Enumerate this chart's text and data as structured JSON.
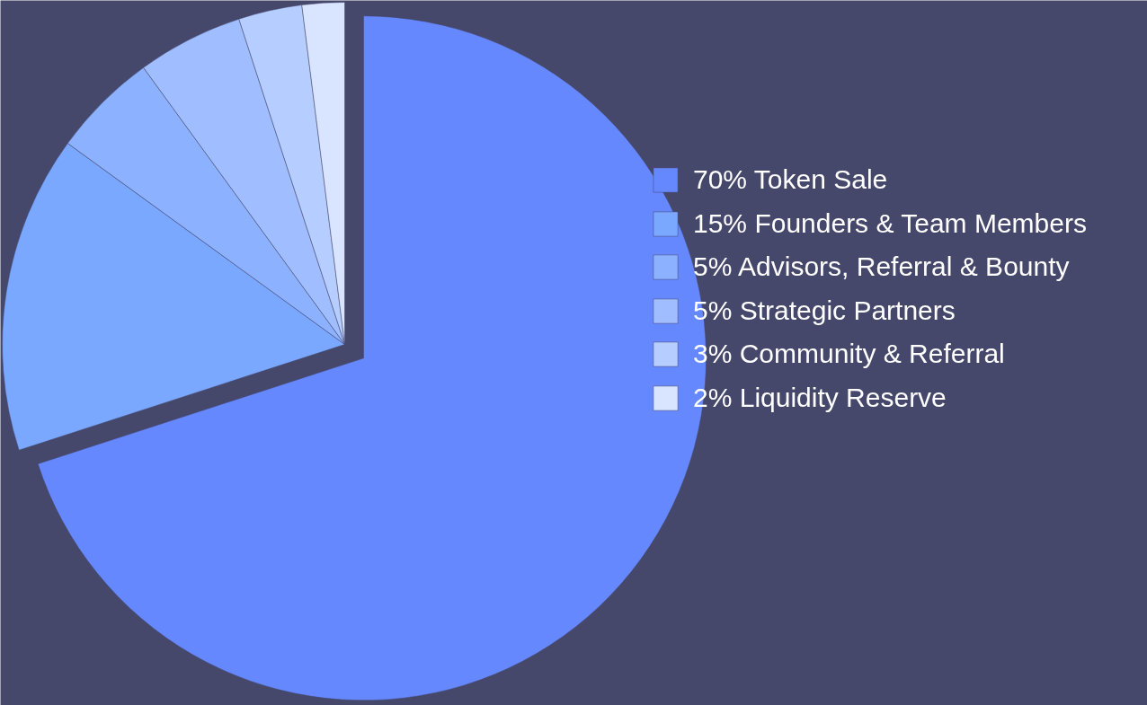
{
  "chart_data": {
    "type": "pie",
    "categories": [
      "Token Sale",
      "Founders & Team Members",
      "Advisors, Referral & Bounty",
      "Strategic Partners",
      "Community & Referral",
      "Liquidity Reserve"
    ],
    "values": [
      70,
      15,
      5,
      5,
      3,
      2
    ],
    "value_labels": [
      "70%",
      "15%",
      "5%",
      "5%",
      "3%",
      "2%"
    ],
    "colors": [
      "#6688ff",
      "#7aa7ff",
      "#8cb2ff",
      "#a0beff",
      "#b5cdff",
      "#d9e5ff"
    ],
    "legend": "right"
  }
}
